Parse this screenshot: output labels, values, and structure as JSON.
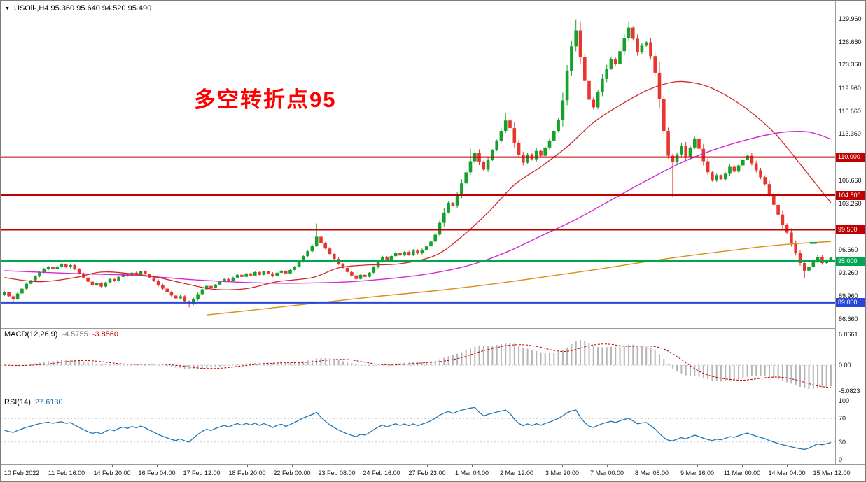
{
  "header": {
    "collapse_icon": "▼",
    "symbol_info": "USOil-,H4 95.360 95.640 94.520 95.490"
  },
  "annotation": {
    "text": "多空转折点95",
    "color": "#fe0000"
  },
  "colors": {
    "up": "#16a02c",
    "down": "#e8352e",
    "ma_fast": "#d02828",
    "ma_mid": "#d428d4",
    "ma_slow": "#d89018",
    "macd_hist": "#b5b5b5",
    "macd_signal": "#c00000",
    "rsi_line": "#2277b4",
    "level_dotted": "#c8c8c8",
    "badge_text": "#ffffff"
  },
  "chart_data": {
    "type": "candlestick",
    "symbol": "USOil-",
    "timeframe": "H4",
    "quote": {
      "open": "95.360",
      "high": "95.640",
      "low": "94.520",
      "close": "95.490"
    },
    "main_y_range": [
      85.3,
      132.6
    ],
    "closes": [
      90.5,
      89.9,
      89.5,
      90.3,
      91.0,
      91.7,
      92.2,
      92.8,
      93.4,
      93.8,
      94.1,
      93.8,
      94.2,
      94.5,
      94.1,
      94.4,
      93.8,
      93.2,
      92.6,
      92.0,
      91.5,
      91.8,
      91.3,
      91.9,
      92.4,
      92.1,
      92.7,
      93.1,
      92.8,
      93.3,
      93.0,
      93.5,
      93.1,
      92.6,
      92.1,
      91.5,
      91.0,
      90.5,
      90.0,
      89.6,
      89.9,
      89.2,
      88.8,
      89.5,
      90.2,
      90.9,
      91.4,
      91.1,
      91.6,
      92.0,
      92.4,
      92.1,
      92.6,
      93.0,
      92.7,
      93.2,
      92.9,
      93.4,
      93.0,
      93.5,
      93.2,
      92.8,
      93.3,
      93.6,
      93.2,
      93.7,
      94.2,
      94.9,
      95.7,
      96.4,
      97.2,
      98.5,
      97.6,
      96.8,
      96.0,
      95.3,
      94.6,
      94.0,
      93.4,
      92.9,
      92.4,
      93.0,
      92.7,
      93.3,
      94.1,
      94.9,
      95.6,
      95.1,
      95.7,
      96.2,
      95.8,
      96.3,
      95.9,
      96.5,
      96.1,
      96.6,
      97.1,
      97.8,
      98.8,
      100.5,
      102.0,
      103.4,
      103.0,
      104.6,
      106.2,
      107.8,
      109.4,
      110.6,
      109.3,
      108.2,
      109.6,
      111.0,
      112.4,
      113.8,
      115.3,
      114.2,
      112.1,
      110.3,
      109.2,
      110.4,
      109.7,
      110.9,
      110.2,
      111.4,
      112.4,
      113.8,
      115.4,
      118.2,
      122.5,
      126.0,
      128.3,
      124.5,
      121.0,
      118.3,
      117.2,
      119.4,
      121.3,
      122.8,
      124.2,
      123.4,
      125.3,
      127.2,
      128.7,
      127.1,
      125.2,
      126.1,
      126.6,
      124.6,
      122.2,
      118.4,
      113.8,
      110.2,
      109.3,
      110.4,
      111.6,
      110.1,
      111.4,
      112.7,
      111.2,
      109.4,
      107.8,
      106.6,
      107.4,
      106.8,
      107.6,
      108.6,
      107.9,
      108.8,
      109.6,
      110.2,
      109.1,
      108.1,
      107.1,
      106.1,
      104.6,
      103.1,
      101.7,
      100.2,
      99.1,
      97.6,
      96.1,
      94.7,
      93.6,
      94.1,
      94.9,
      95.6,
      94.7,
      95.1,
      95.49
    ],
    "wick_overrides": {
      "2": {
        "l": 88.8
      },
      "42": {
        "l": 88.3
      },
      "71": {
        "h": 100.4
      },
      "106": {
        "h": 111.2
      },
      "114": {
        "h": 116.4
      },
      "130": {
        "h": 129.9
      },
      "133": {
        "l": 116.2
      },
      "142": {
        "h": 129.6
      },
      "152": {
        "l": 104.2
      },
      "182": {
        "l": 92.5
      }
    },
    "hlines": [
      {
        "price": 110.0,
        "label": "110.000",
        "color": "#c00000",
        "width": 2
      },
      {
        "price": 104.5,
        "label": "104.500",
        "color": "#c00000",
        "width": 2
      },
      {
        "price": 99.5,
        "label": "99.500",
        "color": "#c00000",
        "width": 2
      },
      {
        "price": 95.0,
        "label": "95.000",
        "color": "#00a650",
        "width": 2
      },
      {
        "price": 89.0,
        "label": "89.000",
        "color": "#2946d9",
        "width": 3
      }
    ],
    "price_labels": [
      [
        "129.960",
        129.96
      ],
      [
        "126.660",
        126.66
      ],
      [
        "123.360",
        123.36
      ],
      [
        "119.960",
        119.96
      ],
      [
        "116.660",
        116.66
      ],
      [
        "113.360",
        113.36
      ],
      [
        "106.660",
        106.66
      ],
      [
        "103.260",
        103.26
      ],
      [
        "96.660",
        96.66
      ],
      [
        "93.260",
        93.26
      ],
      [
        "89.960",
        89.96
      ],
      [
        "86.660",
        86.66
      ]
    ],
    "ma_fast_points": [
      [
        0,
        92.6
      ],
      [
        8,
        92.0
      ],
      [
        16,
        92.6
      ],
      [
        22,
        93.4
      ],
      [
        28,
        93.2
      ],
      [
        35,
        92.6
      ],
      [
        42,
        91.6
      ],
      [
        48,
        90.9
      ],
      [
        55,
        91.0
      ],
      [
        62,
        92.0
      ],
      [
        70,
        92.6
      ],
      [
        76,
        94.0
      ],
      [
        82,
        94.4
      ],
      [
        90,
        94.6
      ],
      [
        98,
        95.8
      ],
      [
        104,
        98.5
      ],
      [
        110,
        102.0
      ],
      [
        116,
        106.0
      ],
      [
        122,
        108.6
      ],
      [
        128,
        111.5
      ],
      [
        134,
        115.0
      ],
      [
        140,
        117.5
      ],
      [
        146,
        119.6
      ],
      [
        151,
        120.7
      ],
      [
        155,
        120.9
      ],
      [
        160,
        120.2
      ],
      [
        165,
        118.6
      ],
      [
        170,
        116.4
      ],
      [
        175,
        113.6
      ],
      [
        178,
        111.4
      ],
      [
        181,
        109.0
      ],
      [
        184,
        106.6
      ],
      [
        188,
        103.4
      ]
    ],
    "ma_mid_points": [
      [
        0,
        93.6
      ],
      [
        15,
        93.2
      ],
      [
        30,
        92.9
      ],
      [
        45,
        92.2
      ],
      [
        60,
        91.8
      ],
      [
        75,
        91.9
      ],
      [
        85,
        92.3
      ],
      [
        95,
        93.0
      ],
      [
        102,
        93.8
      ],
      [
        108,
        94.8
      ],
      [
        115,
        96.5
      ],
      [
        122,
        98.6
      ],
      [
        130,
        101.0
      ],
      [
        138,
        103.8
      ],
      [
        146,
        106.6
      ],
      [
        154,
        109.2
      ],
      [
        162,
        111.2
      ],
      [
        170,
        112.7
      ],
      [
        177,
        113.6
      ],
      [
        182,
        113.7
      ],
      [
        185,
        113.3
      ],
      [
        188,
        112.6
      ]
    ],
    "ma_slow_points": [
      [
        46,
        87.2
      ],
      [
        55,
        87.8
      ],
      [
        65,
        88.5
      ],
      [
        75,
        89.2
      ],
      [
        85,
        89.9
      ],
      [
        95,
        90.5
      ],
      [
        105,
        91.2
      ],
      [
        115,
        92.0
      ],
      [
        125,
        92.9
      ],
      [
        135,
        93.8
      ],
      [
        145,
        94.8
      ],
      [
        155,
        95.7
      ],
      [
        165,
        96.5
      ],
      [
        173,
        97.1
      ],
      [
        180,
        97.5
      ],
      [
        188,
        97.8
      ]
    ],
    "markers": [
      {
        "index": 184,
        "price": 97.6,
        "color": "#00a650"
      }
    ],
    "macd": {
      "name": "MACD(12,26,9)",
      "main_value": "-4.5755",
      "signal_value": "-3.8560",
      "params": [
        12,
        26,
        9
      ],
      "axis": [
        {
          "text": "6.0661",
          "value": 6.0661
        },
        {
          "text": "0.00",
          "value": 0
        },
        {
          "text": "-5.0823",
          "value": -5.0823
        }
      ]
    },
    "rsi": {
      "name": "RSI(14)",
      "value": "27.6130",
      "period": 14,
      "levels": [
        70,
        30
      ],
      "axis": [
        {
          "text": "100",
          "value": 100
        },
        {
          "text": "70",
          "value": 70
        },
        {
          "text": "30",
          "value": 30
        },
        {
          "text": "0",
          "value": 0
        }
      ]
    },
    "time_labels": [
      "10 Feb 2022",
      "11 Feb 16:00",
      "14 Feb 20:00",
      "16 Feb 04:00",
      "17 Feb 12:00",
      "18 Feb 20:00",
      "22 Feb 00:00",
      "23 Feb 08:00",
      "24 Feb 16:00",
      "27 Feb 23:00",
      "1 Mar 04:00",
      "2 Mar 12:00",
      "3 Mar 20:00",
      "7 Mar 00:00",
      "8 Mar 08:00",
      "9 Mar 16:00",
      "11 Mar 00:00",
      "14 Mar 04:00",
      "15 Mar 12:00"
    ]
  }
}
